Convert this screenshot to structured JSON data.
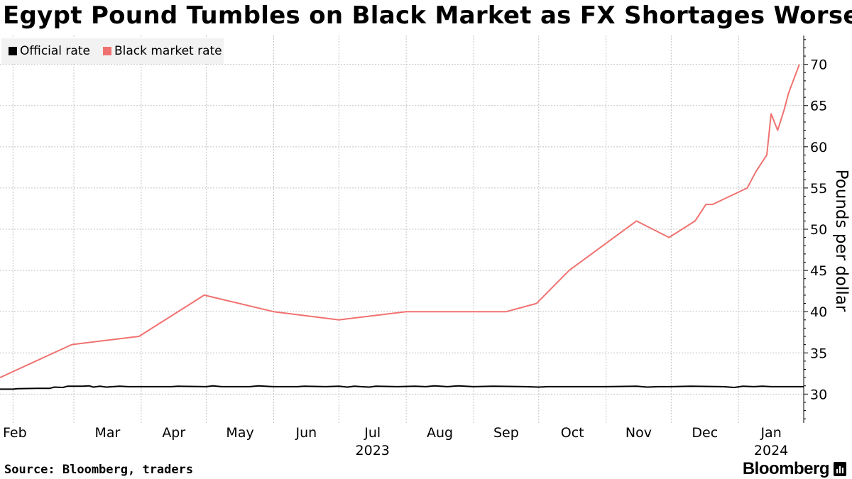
{
  "title": "Egypt Pound Tumbles on Black Market as FX Shortages Worsen",
  "source": "Source: Bloomberg, traders",
  "brand": "Bloomberg",
  "legend": [
    {
      "label": "Official rate",
      "color": "#000000"
    },
    {
      "label": "Black market rate",
      "color": "#f07270"
    }
  ],
  "chart_data": {
    "type": "line",
    "title": "Egypt Pound Tumbles on Black Market as FX Shortages Worsen",
    "xlabel": "",
    "ylabel": "Pounds per dollar",
    "ylim": [
      26.5,
      73.5
    ],
    "y_ticks": [
      30,
      35,
      40,
      45,
      50,
      55,
      60,
      65,
      70
    ],
    "x_ticks": [
      {
        "label": "Feb",
        "date": "2023-02-01"
      },
      {
        "label": "Mar",
        "date": "2023-03-01"
      },
      {
        "label": "Apr",
        "date": "2023-04-01"
      },
      {
        "label": "May",
        "date": "2023-05-01"
      },
      {
        "label": "Jun",
        "date": "2023-06-01"
      },
      {
        "label": "Jul",
        "date": "2023-07-01"
      },
      {
        "label": "Aug",
        "date": "2023-08-01"
      },
      {
        "label": "Sep",
        "date": "2023-09-01"
      },
      {
        "label": "Oct",
        "date": "2023-10-01"
      },
      {
        "label": "Nov",
        "date": "2023-11-01"
      },
      {
        "label": "Dec",
        "date": "2023-12-01"
      },
      {
        "label": "Jan",
        "date": "2024-01-01"
      }
    ],
    "year_labels": [
      {
        "label": "2023",
        "date": "2023-07-01"
      },
      {
        "label": "2024",
        "date": "2024-01-01"
      }
    ],
    "x_range": [
      "2023-01-26",
      "2024-01-31"
    ],
    "grid": true,
    "legend_position": "top-left",
    "series": [
      {
        "name": "Official rate",
        "color": "#000000",
        "points": [
          [
            "2023-01-26",
            30.6
          ],
          [
            "2023-02-01",
            30.6
          ],
          [
            "2023-02-03",
            30.65
          ],
          [
            "2023-02-12",
            30.7
          ],
          [
            "2023-02-18",
            30.7
          ],
          [
            "2023-02-20",
            30.85
          ],
          [
            "2023-02-24",
            30.8
          ],
          [
            "2023-02-26",
            30.95
          ],
          [
            "2023-03-05",
            30.95
          ],
          [
            "2023-03-08",
            31.0
          ],
          [
            "2023-03-10",
            30.85
          ],
          [
            "2023-03-13",
            30.95
          ],
          [
            "2023-03-16",
            30.85
          ],
          [
            "2023-03-22",
            30.95
          ],
          [
            "2023-03-26",
            30.9
          ],
          [
            "2023-04-15",
            30.9
          ],
          [
            "2023-04-18",
            30.95
          ],
          [
            "2023-05-01",
            30.9
          ],
          [
            "2023-05-04",
            31.0
          ],
          [
            "2023-05-08",
            30.9
          ],
          [
            "2023-05-21",
            30.9
          ],
          [
            "2023-05-25",
            31.0
          ],
          [
            "2023-06-01",
            30.9
          ],
          [
            "2023-06-12",
            30.9
          ],
          [
            "2023-06-15",
            30.95
          ],
          [
            "2023-06-25",
            30.9
          ],
          [
            "2023-07-01",
            30.95
          ],
          [
            "2023-07-05",
            30.85
          ],
          [
            "2023-07-08",
            30.95
          ],
          [
            "2023-07-15",
            30.85
          ],
          [
            "2023-07-18",
            30.95
          ],
          [
            "2023-07-28",
            30.9
          ],
          [
            "2023-08-05",
            30.95
          ],
          [
            "2023-08-10",
            30.9
          ],
          [
            "2023-08-14",
            31.0
          ],
          [
            "2023-08-20",
            30.9
          ],
          [
            "2023-08-25",
            31.0
          ],
          [
            "2023-09-01",
            30.9
          ],
          [
            "2023-09-10",
            30.95
          ],
          [
            "2023-09-25",
            30.9
          ],
          [
            "2023-10-01",
            30.85
          ],
          [
            "2023-10-05",
            30.9
          ],
          [
            "2023-11-01",
            30.9
          ],
          [
            "2023-11-15",
            30.95
          ],
          [
            "2023-11-20",
            30.85
          ],
          [
            "2023-11-25",
            30.9
          ],
          [
            "2023-12-01",
            30.9
          ],
          [
            "2023-12-10",
            30.95
          ],
          [
            "2023-12-25",
            30.9
          ],
          [
            "2023-12-30",
            30.8
          ],
          [
            "2024-01-03",
            30.95
          ],
          [
            "2024-01-08",
            30.9
          ],
          [
            "2024-01-12",
            30.95
          ],
          [
            "2024-01-16",
            30.9
          ],
          [
            "2024-01-31",
            30.9
          ]
        ]
      },
      {
        "name": "Black market rate",
        "color": "#f07270",
        "points": [
          [
            "2023-01-26",
            32.0
          ],
          [
            "2023-02-28",
            36.0
          ],
          [
            "2023-03-31",
            37.0
          ],
          [
            "2023-04-30",
            42.0
          ],
          [
            "2023-06-01",
            40.0
          ],
          [
            "2023-07-01",
            39.0
          ],
          [
            "2023-08-01",
            40.0
          ],
          [
            "2023-09-16",
            40.0
          ],
          [
            "2023-09-30",
            41.0
          ],
          [
            "2023-10-15",
            45.0
          ],
          [
            "2023-11-15",
            51.0
          ],
          [
            "2023-11-30",
            49.0
          ],
          [
            "2023-12-12",
            51.0
          ],
          [
            "2023-12-17",
            53.0
          ],
          [
            "2023-12-20",
            53.0
          ],
          [
            "2024-01-05",
            55.0
          ],
          [
            "2024-01-09",
            57.0
          ],
          [
            "2024-01-14",
            59.0
          ],
          [
            "2024-01-16",
            64.0
          ],
          [
            "2024-01-19",
            62.0
          ],
          [
            "2024-01-22",
            64.5
          ],
          [
            "2024-01-24",
            66.5
          ],
          [
            "2024-01-29",
            70.0
          ]
        ]
      }
    ]
  }
}
